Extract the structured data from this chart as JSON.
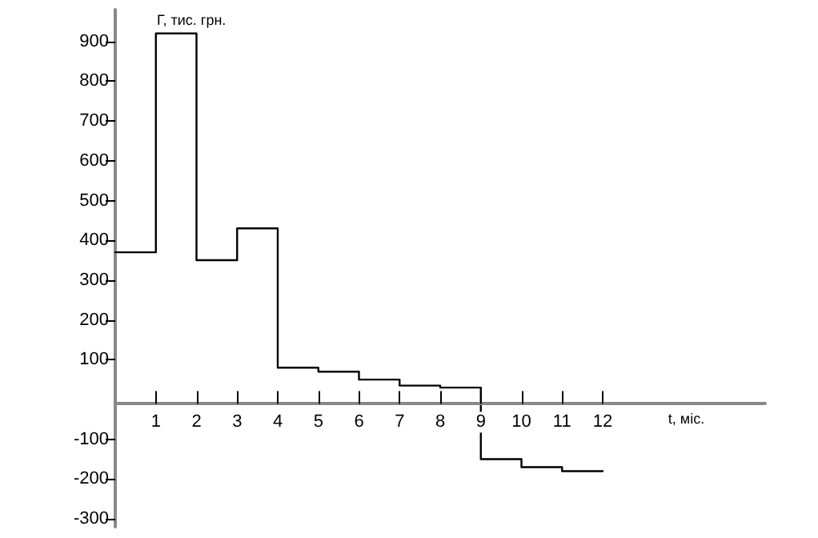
{
  "chart_data": {
    "type": "step",
    "ylabel": "Г, тис. грн.",
    "xlabel": "t, міс.",
    "x": [
      0,
      1,
      2,
      3,
      4,
      5,
      6,
      7,
      8,
      9,
      10,
      11,
      12
    ],
    "values": [
      370,
      920,
      350,
      430,
      80,
      70,
      50,
      35,
      30,
      -150,
      -170,
      -180,
      -180
    ],
    "color": "#000000",
    "xlim": [
      0,
      16
    ],
    "xticks": [
      1,
      2,
      3,
      4,
      5,
      6,
      7,
      8,
      9,
      10,
      11,
      12
    ],
    "ylim": [
      -320,
      980
    ],
    "yticks": [
      -300,
      -200,
      -100,
      100,
      200,
      300,
      400,
      500,
      600,
      700,
      800,
      900
    ],
    "grid": false,
    "marker": "none",
    "line_style": "solid"
  }
}
